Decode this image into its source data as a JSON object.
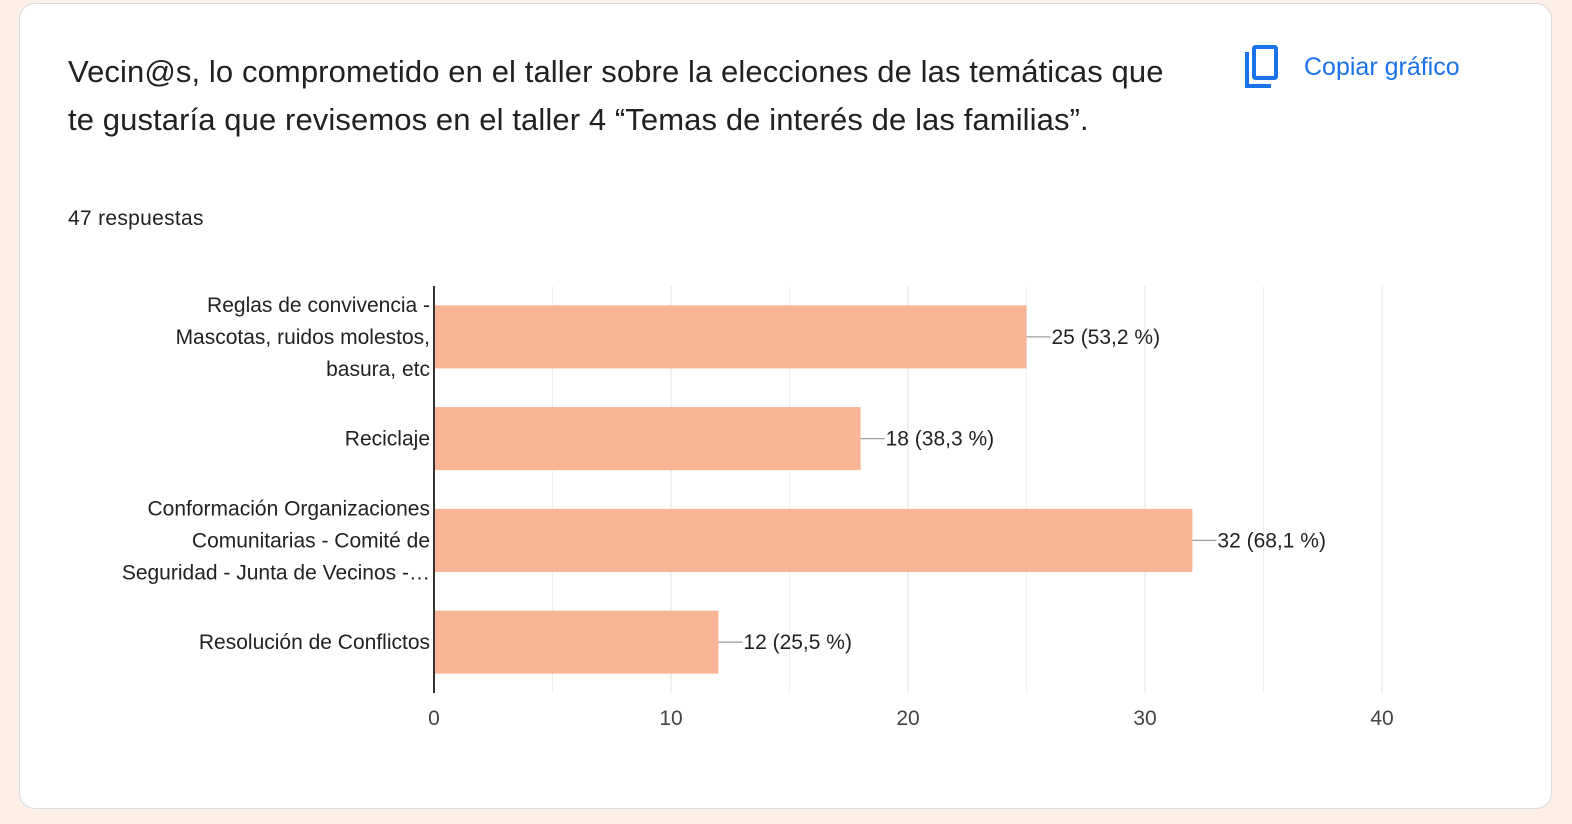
{
  "question": {
    "title": "Vecin@s, lo comprometido en el taller sobre la elecciones de las temáticas que te gustaría que revisemos en el taller 4 “Temas de interés de las familias”.",
    "responses": "47 respuestas"
  },
  "toolbar": {
    "copy_label": "Copiar gráfico",
    "copy_icon": "copy-icon"
  },
  "colors": {
    "bar": "#f8b595",
    "accent": "#1a73e8"
  },
  "chart_data": {
    "type": "bar",
    "orientation": "horizontal",
    "categories": [
      [
        "Reglas de convivencia -",
        "Mascotas, ruidos molestos,",
        "basura, etc"
      ],
      [
        "Reciclaje"
      ],
      [
        "Conformación Organizaciones",
        "Comunitarias - Comité de",
        "Seguridad - Junta de Vecinos -…"
      ],
      [
        "Resolución de Conflictos"
      ]
    ],
    "values": [
      25,
      18,
      32,
      12
    ],
    "data_labels": [
      "25 (53,2 %)",
      "18 (38,3 %)",
      "32 (68,1 %)",
      "12 (25,5 %)"
    ],
    "xlim": [
      0,
      40
    ],
    "x_ticks": [
      0,
      10,
      20,
      30,
      40
    ],
    "grid": true
  }
}
